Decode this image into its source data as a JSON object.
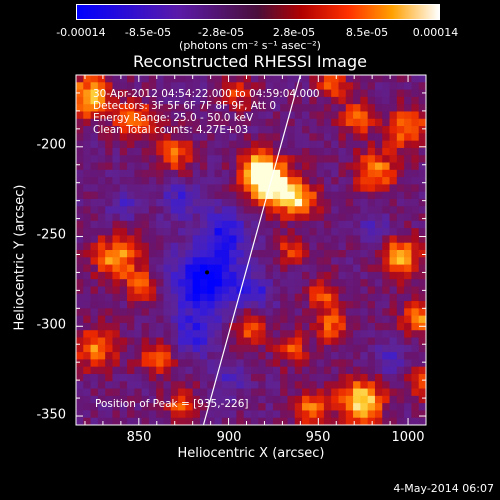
{
  "colorbar": {
    "tick_labels": [
      "-0.00014",
      "-8.5e-05",
      "-2.8e-05",
      "2.8e-05",
      "8.5e-05",
      "0.00014"
    ],
    "units": "(photons cm⁻² s⁻¹ asec⁻²)"
  },
  "annotations": {
    "time": "30-Apr-2012 04:54:22.000 to 04:59:04.000",
    "detectors": "Detectors: 3F 5F 6F 7F 8F 9F, Att 0",
    "energy": "Energy Range: 25.0 - 50.0 keV",
    "clean": "Clean    Total counts: 4.27E+03",
    "peak": "Position of Peak = [935,-226]"
  },
  "timestamp": "4-May-2014 06:07",
  "chart_data": {
    "type": "heatmap",
    "title": "Reconstructed RHESSI Image",
    "xlabel": "Heliocentric X (arcsec)",
    "ylabel": "Heliocentric Y (arcsec)",
    "xlim": [
      815,
      1010
    ],
    "ylim": [
      -355,
      -160
    ],
    "xticks": [
      850,
      900,
      950,
      1000
    ],
    "yticks": [
      -200,
      -250,
      -300,
      -350
    ],
    "colorbar_range": [
      -0.00014,
      0.00014
    ],
    "colormap": "rhessi-diverging (blue-purple-red-yellow-white)",
    "limb_line": {
      "x": [
        886,
        940
      ],
      "y": [
        -355,
        -160
      ]
    },
    "peak_position": [
      935,
      -226
    ],
    "marker": [
      888,
      -270
    ],
    "hot_spots": [
      {
        "x": 925,
        "y": -222,
        "r": 9,
        "v": 1.0
      },
      {
        "x": 916,
        "y": -212,
        "r": 7,
        "v": 0.8
      },
      {
        "x": 940,
        "y": -230,
        "r": 7,
        "v": 0.7
      },
      {
        "x": 822,
        "y": -172,
        "r": 9,
        "v": 0.75
      },
      {
        "x": 848,
        "y": -186,
        "r": 8,
        "v": 0.6
      },
      {
        "x": 870,
        "y": -204,
        "r": 7,
        "v": 0.55
      },
      {
        "x": 838,
        "y": -262,
        "r": 9,
        "v": 0.7
      },
      {
        "x": 852,
        "y": -278,
        "r": 6,
        "v": 0.55
      },
      {
        "x": 826,
        "y": -312,
        "r": 8,
        "v": 0.65
      },
      {
        "x": 860,
        "y": -318,
        "r": 7,
        "v": 0.55
      },
      {
        "x": 875,
        "y": -345,
        "r": 7,
        "v": 0.5
      },
      {
        "x": 912,
        "y": -300,
        "r": 7,
        "v": 0.6
      },
      {
        "x": 935,
        "y": -313,
        "r": 6,
        "v": 0.55
      },
      {
        "x": 958,
        "y": -300,
        "r": 7,
        "v": 0.55
      },
      {
        "x": 952,
        "y": -282,
        "r": 6,
        "v": 0.5
      },
      {
        "x": 974,
        "y": -342,
        "r": 9,
        "v": 0.85
      },
      {
        "x": 945,
        "y": -346,
        "r": 7,
        "v": 0.6
      },
      {
        "x": 996,
        "y": -262,
        "r": 8,
        "v": 0.75
      },
      {
        "x": 1006,
        "y": -295,
        "r": 7,
        "v": 0.65
      },
      {
        "x": 982,
        "y": -214,
        "r": 8,
        "v": 0.7
      },
      {
        "x": 1000,
        "y": -190,
        "r": 8,
        "v": 0.65
      },
      {
        "x": 972,
        "y": -184,
        "r": 7,
        "v": 0.55
      },
      {
        "x": 958,
        "y": -165,
        "r": 6,
        "v": 0.5
      },
      {
        "x": 1008,
        "y": -332,
        "r": 6,
        "v": 0.55
      },
      {
        "x": 905,
        "y": -170,
        "r": 6,
        "v": 0.45
      },
      {
        "x": 935,
        "y": -258,
        "r": 6,
        "v": 0.45
      }
    ],
    "cold_spots": [
      {
        "x": 888,
        "y": -275,
        "r": 13,
        "v": -0.95
      },
      {
        "x": 898,
        "y": -248,
        "r": 9,
        "v": -0.6
      },
      {
        "x": 880,
        "y": -305,
        "r": 8,
        "v": -0.5
      },
      {
        "x": 873,
        "y": -230,
        "r": 7,
        "v": -0.45
      },
      {
        "x": 915,
        "y": -282,
        "r": 7,
        "v": -0.45
      },
      {
        "x": 842,
        "y": -232,
        "r": 6,
        "v": -0.35
      },
      {
        "x": 990,
        "y": -318,
        "r": 6,
        "v": -0.35
      },
      {
        "x": 980,
        "y": -245,
        "r": 6,
        "v": -0.35
      },
      {
        "x": 900,
        "y": -330,
        "r": 6,
        "v": -0.35
      }
    ]
  }
}
